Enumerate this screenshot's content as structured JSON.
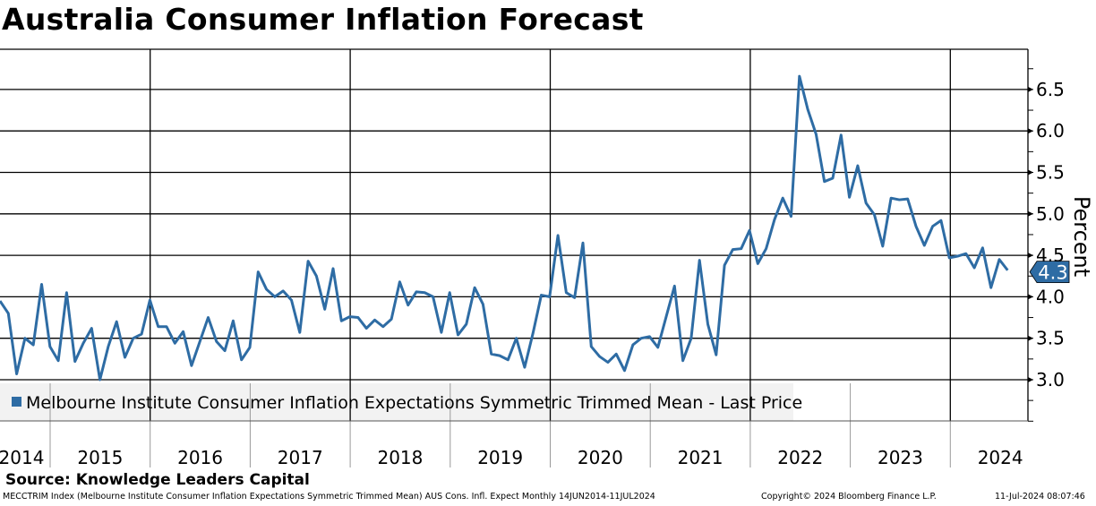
{
  "chart_data": {
    "type": "line",
    "title": "Australia Consumer Inflation Forecast",
    "ylabel": "Percent",
    "ylim": [
      2.45,
      6.95
    ],
    "yticks": [
      "3.0",
      "3.5",
      "4.0",
      "4.5",
      "5.0",
      "5.5",
      "6.0",
      "6.5"
    ],
    "xlabels": [
      "2014",
      "2015",
      "2016",
      "2017",
      "2018",
      "2019",
      "2020",
      "2021",
      "2022",
      "2023",
      "2024"
    ],
    "start": "2014-06",
    "frequency": "monthly",
    "grid": true,
    "legend_position": "bottom-left",
    "series": [
      {
        "name": "Melbourne Institute Consumer Inflation Expectations Symmetric Trimmed Mean - Last Price",
        "color": "#2e6ca4",
        "last_value": "4.3",
        "values": [
          3.95,
          3.8,
          3.07,
          3.5,
          3.42,
          4.15,
          3.4,
          3.23,
          4.05,
          3.22,
          3.44,
          3.62,
          3.0,
          3.4,
          3.7,
          3.27,
          3.5,
          3.55,
          3.96,
          3.64,
          3.64,
          3.44,
          3.58,
          3.17,
          3.46,
          3.75,
          3.46,
          3.35,
          3.71,
          3.24,
          3.39,
          4.3,
          4.09,
          4.0,
          4.07,
          3.96,
          3.57,
          4.43,
          4.25,
          3.85,
          4.34,
          3.71,
          3.76,
          3.75,
          3.62,
          3.72,
          3.64,
          3.73,
          4.18,
          3.9,
          4.06,
          4.05,
          4.0,
          3.57,
          4.05,
          3.54,
          3.67,
          4.11,
          3.91,
          3.31,
          3.29,
          3.24,
          3.5,
          3.15,
          3.56,
          4.02,
          4.0,
          4.74,
          4.05,
          3.99,
          4.65,
          3.4,
          3.28,
          3.21,
          3.31,
          3.11,
          3.42,
          3.5,
          3.52,
          3.39,
          3.76,
          4.13,
          3.23,
          3.5,
          4.44,
          3.67,
          3.3,
          4.38,
          4.57,
          4.58,
          4.8,
          4.4,
          4.58,
          4.93,
          5.19,
          4.97,
          6.66,
          6.26,
          5.96,
          5.39,
          5.43,
          5.95,
          5.2,
          5.58,
          5.13,
          4.99,
          4.61,
          5.19,
          5.17,
          5.18,
          4.85,
          4.62,
          4.85,
          4.92,
          4.47,
          4.49,
          4.52,
          4.35,
          4.59,
          4.11,
          4.45,
          4.32
        ]
      }
    ]
  },
  "source": "Source: Knowledge Leaders Capital",
  "footer": {
    "ticker": "MECCTRIM Index (Melbourne Institute Consumer Inflation Expectations Symmetric Trimmed Mean) AUS Cons. Infl. Expect  Monthly 14JUN2014-11JUL2024",
    "copyright": "Copyright© 2024 Bloomberg Finance L.P.",
    "timestamp": "11-Jul-2024 08:07:46"
  }
}
